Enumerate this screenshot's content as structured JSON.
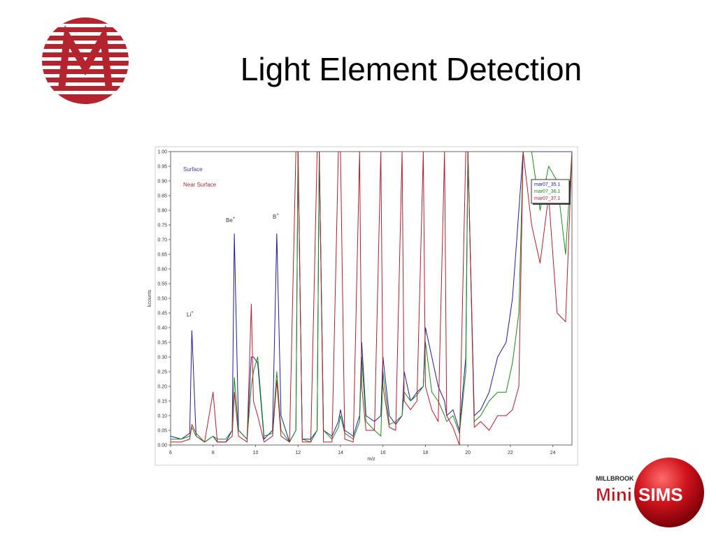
{
  "branding": {
    "brand": "MILLBROOK",
    "mini": "Mini",
    "sims": "SIMS"
  },
  "chart_data": {
    "type": "line",
    "title": "Light Element Detection",
    "x_label": "m/z",
    "y_label": "kcounts",
    "annotations": [
      {
        "text": "Surface",
        "color": "#3a3aa0"
      },
      {
        "text": "Near Surface",
        "color": "#a0303a"
      },
      {
        "text": "Li",
        "sup": "+",
        "color": "#333333"
      },
      {
        "text": "Be",
        "sup": "+",
        "color": "#333333"
      },
      {
        "text": "B",
        "sup": "+",
        "color": "#333333"
      }
    ],
    "x": [
      6.0,
      6.5,
      6.9,
      7.0,
      7.2,
      7.6,
      8.0,
      8.2,
      8.6,
      8.9,
      9.0,
      9.2,
      9.6,
      9.8,
      9.9,
      10.1,
      10.4,
      10.8,
      11.0,
      11.2,
      11.6,
      11.9,
      12.0,
      12.2,
      12.6,
      12.9,
      13.0,
      13.2,
      13.6,
      13.9,
      14.0,
      14.2,
      14.6,
      14.9,
      15.0,
      15.2,
      15.6,
      15.9,
      16.0,
      16.3,
      16.6,
      16.9,
      17.0,
      17.3,
      17.6,
      17.9,
      18.0,
      18.3,
      18.6,
      18.9,
      19.0,
      19.3,
      19.6,
      19.9,
      20.0,
      20.3,
      20.6,
      21.0,
      21.4,
      21.8,
      22.1,
      22.4,
      22.6,
      23.0,
      23.4,
      23.8,
      24.2,
      24.6,
      24.9
    ],
    "series": [
      {
        "name": "mar07_35.1",
        "color": "#1c1c9c",
        "values": [
          0.03,
          0.02,
          0.04,
          0.39,
          0.03,
          0.01,
          0.03,
          0.01,
          0.01,
          0.05,
          0.72,
          0.05,
          0.02,
          0.3,
          0.3,
          0.28,
          0.02,
          0.05,
          0.72,
          0.1,
          0.01,
          0.05,
          1.0,
          0.02,
          0.02,
          0.05,
          1.0,
          0.05,
          0.03,
          0.08,
          0.12,
          0.05,
          0.03,
          0.1,
          0.35,
          0.1,
          0.08,
          0.1,
          0.3,
          0.1,
          0.07,
          0.1,
          0.25,
          0.15,
          0.18,
          0.2,
          0.4,
          0.3,
          0.2,
          0.15,
          0.1,
          0.12,
          0.05,
          0.3,
          1.0,
          0.1,
          0.12,
          0.18,
          0.3,
          0.35,
          0.5,
          0.8,
          1.0,
          1.0,
          1.0,
          1.0,
          1.0,
          1.0,
          1.0
        ]
      },
      {
        "name": "mar07_36.1",
        "color": "#1a8a1a",
        "values": [
          0.02,
          0.02,
          0.03,
          0.06,
          0.03,
          0.01,
          0.03,
          0.02,
          0.02,
          0.05,
          0.23,
          0.05,
          0.02,
          0.2,
          0.25,
          0.3,
          0.03,
          0.04,
          0.25,
          0.05,
          0.01,
          0.05,
          1.0,
          0.02,
          0.01,
          0.05,
          1.0,
          0.05,
          0.02,
          0.06,
          0.1,
          0.04,
          0.02,
          0.08,
          0.3,
          0.08,
          0.05,
          0.03,
          0.25,
          0.07,
          0.08,
          0.1,
          0.18,
          0.15,
          0.17,
          0.2,
          0.35,
          0.18,
          0.15,
          0.1,
          0.08,
          0.1,
          0.04,
          0.25,
          1.0,
          0.08,
          0.1,
          0.15,
          0.18,
          0.18,
          0.28,
          0.45,
          1.0,
          1.0,
          0.8,
          0.95,
          0.9,
          0.65,
          1.0
        ]
      },
      {
        "name": "mar07_37.1",
        "color": "#b01e2e",
        "values": [
          0.01,
          0.01,
          0.02,
          0.07,
          0.04,
          0.01,
          0.18,
          0.01,
          0.01,
          0.03,
          0.18,
          0.03,
          0.01,
          0.48,
          0.15,
          0.1,
          0.01,
          0.03,
          0.22,
          0.03,
          0.01,
          1.0,
          1.0,
          0.01,
          0.01,
          1.0,
          1.0,
          0.01,
          0.01,
          1.0,
          1.0,
          0.02,
          0.01,
          1.0,
          0.2,
          0.05,
          0.05,
          1.0,
          0.2,
          0.06,
          0.05,
          1.0,
          0.15,
          0.12,
          0.15,
          1.0,
          0.2,
          0.12,
          0.08,
          1.0,
          0.1,
          0.06,
          0.0,
          1.0,
          1.0,
          0.06,
          0.08,
          0.05,
          0.1,
          0.1,
          0.12,
          0.2,
          1.0,
          0.75,
          0.62,
          0.85,
          0.45,
          0.42,
          1.0
        ]
      }
    ],
    "xlim": [
      6,
      24.9
    ],
    "ylim": [
      0,
      1
    ],
    "xticks": [
      6,
      8,
      10,
      12,
      14,
      16,
      18,
      20,
      22,
      24
    ],
    "yticks": [
      {
        "value": 0,
        "label": "0.00"
      },
      {
        "value": 0.05,
        "label": "0.05"
      },
      {
        "value": 0.1,
        "label": "0.10"
      },
      {
        "value": 0.15,
        "label": "0.15"
      },
      {
        "value": 0.2,
        "label": "0.20"
      },
      {
        "value": 0.25,
        "label": "0.25"
      },
      {
        "value": 0.3,
        "label": "0.30"
      },
      {
        "value": 0.35,
        "label": "0.35"
      },
      {
        "value": 0.4,
        "label": "0.40"
      },
      {
        "value": 0.45,
        "label": "0.45"
      },
      {
        "value": 0.5,
        "label": "0.50"
      },
      {
        "value": 0.55,
        "label": "0.55"
      },
      {
        "value": 0.6,
        "label": "0.60"
      },
      {
        "value": 0.65,
        "label": "0.65"
      },
      {
        "value": 0.7,
        "label": "0.70"
      },
      {
        "value": 0.75,
        "label": "0.75"
      },
      {
        "value": 0.8,
        "label": "0.80"
      },
      {
        "value": 0.85,
        "label": "0.85"
      },
      {
        "value": 0.9,
        "label": "0.90"
      },
      {
        "value": 0.95,
        "label": "0.95"
      },
      {
        "value": 1,
        "label": "1.00"
      }
    ],
    "grid": false,
    "legend": "upper-right"
  }
}
